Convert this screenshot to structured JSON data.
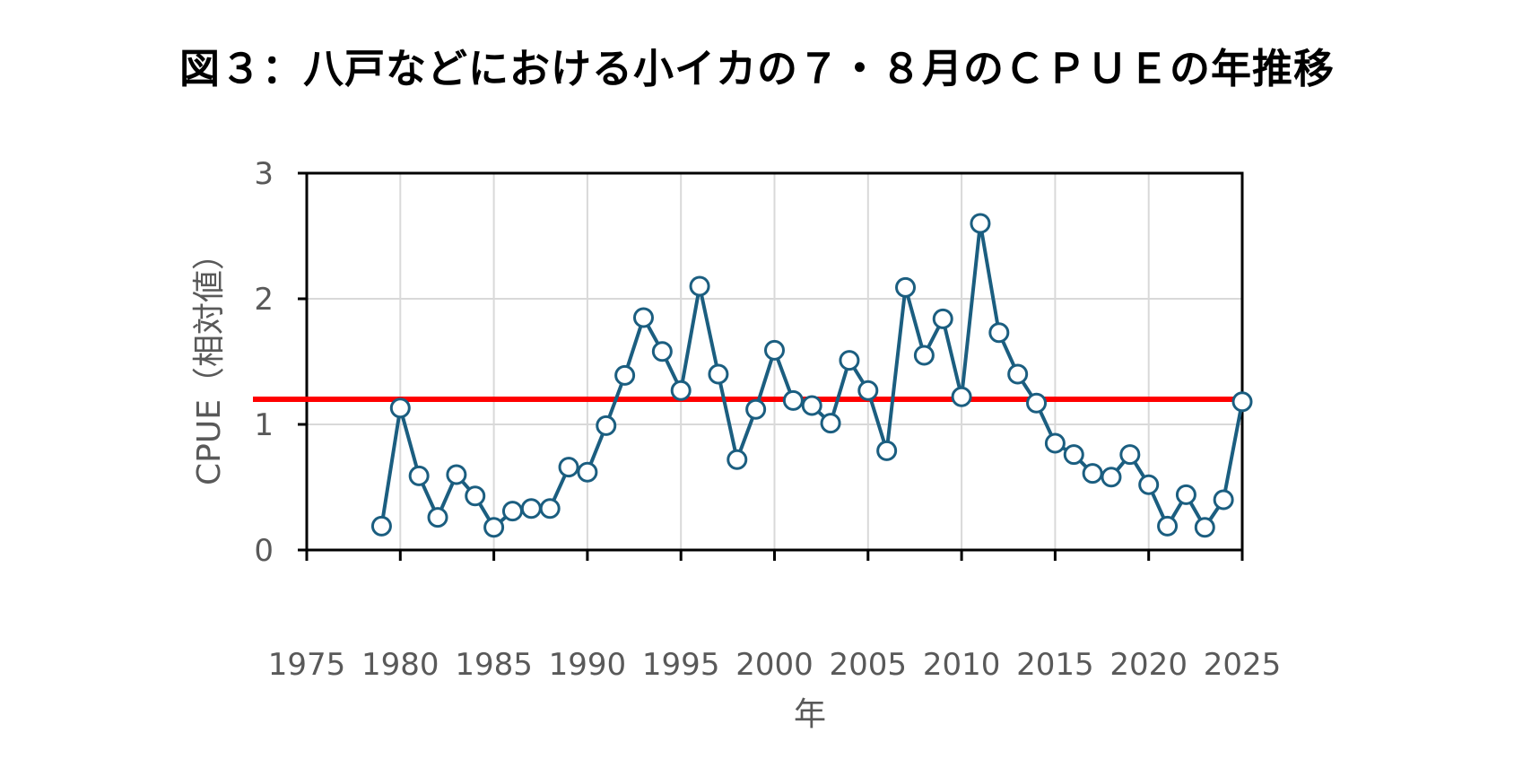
{
  "chart_data": {
    "type": "line",
    "title": "図３：八戸などにおける小イカの７・８月のＣＰＵＥの年推移",
    "xlabel": "年",
    "ylabel": "CPUE（相対値）",
    "xlim": [
      1975,
      2025
    ],
    "ylim": [
      0,
      3
    ],
    "xticks": [
      1975,
      1980,
      1985,
      1990,
      1995,
      2000,
      2005,
      2010,
      2015,
      2020,
      2025
    ],
    "yticks": [
      0,
      1,
      2,
      3
    ],
    "grid": true,
    "x": [
      1979,
      1980,
      1981,
      1982,
      1983,
      1984,
      1985,
      1986,
      1987,
      1988,
      1989,
      1990,
      1991,
      1992,
      1993,
      1994,
      1995,
      1996,
      1997,
      1998,
      1999,
      2000,
      2001,
      2002,
      2003,
      2004,
      2005,
      2006,
      2007,
      2008,
      2009,
      2010,
      2011,
      2012,
      2013,
      2014,
      2015,
      2016,
      2017,
      2018,
      2019,
      2020,
      2021,
      2022,
      2023,
      2024,
      2025
    ],
    "series": [
      {
        "values": [
          0.19,
          1.13,
          0.59,
          0.26,
          0.6,
          0.43,
          0.18,
          0.31,
          0.33,
          0.33,
          0.66,
          0.62,
          0.99,
          1.39,
          1.85,
          1.58,
          1.27,
          2.1,
          1.4,
          0.72,
          1.12,
          1.59,
          1.19,
          1.15,
          1.01,
          1.51,
          1.27,
          0.79,
          2.09,
          1.55,
          1.84,
          1.22,
          2.6,
          1.73,
          1.4,
          1.17,
          0.85,
          0.76,
          0.61,
          0.58,
          0.76,
          0.52,
          0.19,
          0.44,
          0.18,
          0.4,
          1.18
        ],
        "color": "#1b5e80"
      }
    ],
    "reference_line": {
      "value": 1.2,
      "color": "#ff0000"
    }
  }
}
